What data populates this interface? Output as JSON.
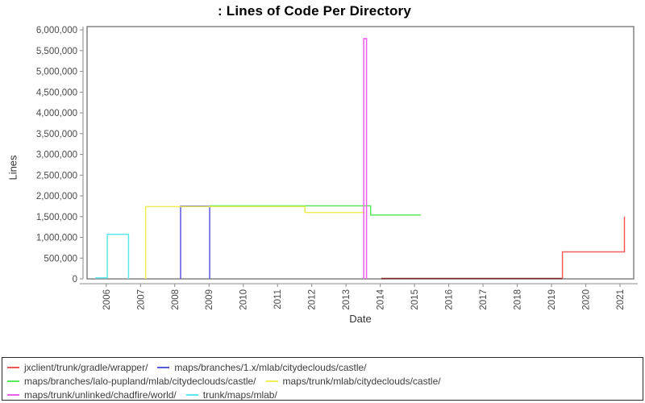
{
  "title": ": Lines of Code Per Directory",
  "chart_data": {
    "type": "line",
    "title": ": Lines of Code Per Directory",
    "xlabel": "Date",
    "ylabel": "Lines",
    "xlim": [
      2005.44,
      2021.4
    ],
    "ylim": [
      0,
      6080000
    ],
    "x_ticks": [
      2006,
      2007,
      2008,
      2009,
      2010,
      2011,
      2012,
      2013,
      2014,
      2015,
      2016,
      2017,
      2018,
      2019,
      2020,
      2021
    ],
    "y_ticks": [
      0,
      500000,
      1000000,
      1500000,
      2000000,
      2500000,
      3000000,
      3500000,
      4000000,
      4500000,
      5000000,
      5500000,
      6000000
    ],
    "grid": false,
    "legend_position": "bottom",
    "series": [
      {
        "name": "jxclient/trunk/gradle/wrapper/",
        "color": "#ee5555",
        "segments": [
          {
            "color": "#7d2424",
            "points": [
              [
                2014.03,
                10000
              ],
              [
                2019.32,
                10000
              ]
            ]
          },
          {
            "color": "#f25c5c",
            "points": [
              [
                2019.32,
                10000
              ],
              [
                2019.32,
                650000
              ],
              [
                2021.13,
                650000
              ],
              [
                2021.13,
                1500000
              ]
            ]
          }
        ]
      },
      {
        "name": "maps/branches/1.x/mlab/citydeclouds/castle/",
        "color": "#5a5ae0",
        "segments": [
          {
            "points": [
              [
                2008.17,
                0
              ],
              [
                2008.17,
                1755000
              ],
              [
                2009.02,
                1755000
              ],
              [
                2009.02,
                0
              ]
            ]
          }
        ]
      },
      {
        "name": "maps/branches/lalo-pupland/mlab/citydeclouds/castle/",
        "color": "#5ce85c",
        "segments": [
          {
            "points": [
              [
                2009.02,
                1760000
              ],
              [
                2013.72,
                1760000
              ],
              [
                2013.72,
                1540000
              ],
              [
                2015.18,
                1540000
              ]
            ]
          }
        ]
      },
      {
        "name": "maps/trunk/mlab/citydeclouds/castle/",
        "color": "#eeee55",
        "segments": [
          {
            "points": [
              [
                2007.15,
                0
              ],
              [
                2007.15,
                1740000
              ],
              [
                2011.8,
                1740000
              ],
              [
                2011.8,
                1600000
              ],
              [
                2013.55,
                1600000
              ]
            ]
          }
        ]
      },
      {
        "name": "maps/trunk/unlinked/chadfire/world/",
        "color": "#ee5cee",
        "segments": [
          {
            "points": [
              [
                2013.52,
                0
              ],
              [
                2013.52,
                5790000
              ],
              [
                2013.6,
                5790000
              ],
              [
                2013.6,
                0
              ]
            ]
          }
        ]
      },
      {
        "name": "trunk/maps/mlab/",
        "color": "#5ce8e8",
        "segments": [
          {
            "points": [
              [
                2005.68,
                25000
              ],
              [
                2006.03,
                25000
              ],
              [
                2006.03,
                1075000
              ],
              [
                2006.65,
                1075000
              ],
              [
                2006.65,
                0
              ]
            ]
          }
        ]
      }
    ],
    "axis_color": "#8a8a8a",
    "tick_label_color": "#4a4a4a"
  },
  "legend_rows": [
    [
      0,
      1
    ],
    [
      2,
      3
    ],
    [
      4,
      5
    ]
  ]
}
